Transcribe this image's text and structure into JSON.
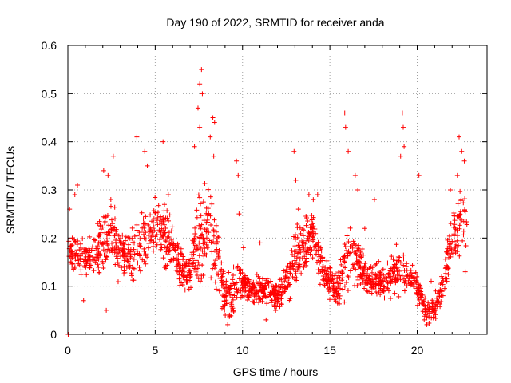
{
  "chart_data": {
    "type": "scatter",
    "title": "Day 190 of 2022, SRMTID for receiver anda",
    "xlabel": "GPS time / hours",
    "ylabel": "SRMTID / TECUs",
    "xlim": [
      0,
      24
    ],
    "ylim": [
      0,
      0.6
    ],
    "x_ticks": [
      0,
      5,
      10,
      15,
      20
    ],
    "x_tick_labels": [
      "0",
      "5",
      "10",
      "15",
      "20"
    ],
    "y_ticks": [
      0,
      0.1,
      0.2,
      0.3,
      0.4,
      0.5,
      0.6
    ],
    "y_tick_labels": [
      "0",
      "0.1",
      "0.2",
      "0.3",
      "0.4",
      "0.5",
      "0.6"
    ],
    "grid": true,
    "marker": "+",
    "color": "#ff0000",
    "envelope": {
      "hours": [
        0.0,
        0.5,
        1.0,
        1.5,
        2.0,
        2.5,
        3.0,
        3.5,
        4.0,
        4.5,
        5.0,
        5.5,
        6.0,
        6.5,
        7.0,
        7.5,
        8.0,
        8.5,
        9.0,
        9.5,
        10.0,
        10.5,
        11.0,
        11.5,
        12.0,
        12.5,
        13.0,
        13.5,
        14.0,
        14.5,
        15.0,
        15.5,
        16.0,
        16.5,
        17.0,
        17.5,
        18.0,
        18.5,
        19.0,
        19.5,
        20.0,
        20.5,
        21.0,
        21.5,
        22.0,
        22.5,
        23.0
      ],
      "median": [
        0.17,
        0.17,
        0.15,
        0.16,
        0.19,
        0.21,
        0.17,
        0.16,
        0.19,
        0.2,
        0.21,
        0.2,
        0.18,
        0.14,
        0.12,
        0.2,
        0.22,
        0.17,
        0.08,
        0.09,
        0.1,
        0.09,
        0.09,
        0.09,
        0.08,
        0.1,
        0.15,
        0.18,
        0.2,
        0.15,
        0.1,
        0.09,
        0.17,
        0.16,
        0.12,
        0.11,
        0.11,
        0.12,
        0.13,
        0.12,
        0.1,
        0.05,
        0.05,
        0.11,
        0.2,
        0.23,
        0.22
      ],
      "spread": [
        0.06,
        0.06,
        0.06,
        0.07,
        0.09,
        0.1,
        0.08,
        0.07,
        0.1,
        0.1,
        0.09,
        0.09,
        0.07,
        0.06,
        0.05,
        0.15,
        0.14,
        0.1,
        0.05,
        0.08,
        0.05,
        0.04,
        0.04,
        0.04,
        0.04,
        0.05,
        0.09,
        0.08,
        0.08,
        0.06,
        0.05,
        0.05,
        0.11,
        0.09,
        0.05,
        0.05,
        0.05,
        0.05,
        0.09,
        0.05,
        0.05,
        0.03,
        0.03,
        0.05,
        0.08,
        0.1,
        0.07
      ],
      "note": "approximate per-half-hour median and spread of the dense scatter; points are sampled within this envelope"
    },
    "points": [
      [
        0.02,
        0.0
      ],
      [
        0.05,
        0.0
      ],
      [
        0.1,
        0.26
      ],
      [
        0.25,
        0.2
      ],
      [
        0.4,
        0.29
      ],
      [
        0.55,
        0.31
      ],
      [
        0.9,
        0.07
      ],
      [
        1.7,
        0.23
      ],
      [
        2.05,
        0.34
      ],
      [
        2.3,
        0.33
      ],
      [
        2.6,
        0.37
      ],
      [
        2.2,
        0.05
      ],
      [
        3.95,
        0.41
      ],
      [
        4.4,
        0.38
      ],
      [
        4.55,
        0.35
      ],
      [
        5.45,
        0.4
      ],
      [
        5.75,
        0.29
      ],
      [
        7.45,
        0.47
      ],
      [
        7.55,
        0.52
      ],
      [
        7.65,
        0.55
      ],
      [
        7.7,
        0.5
      ],
      [
        7.55,
        0.43
      ],
      [
        7.25,
        0.39
      ],
      [
        8.15,
        0.41
      ],
      [
        8.3,
        0.45
      ],
      [
        8.4,
        0.44
      ],
      [
        8.35,
        0.37
      ],
      [
        9.15,
        0.02
      ],
      [
        9.25,
        0.04
      ],
      [
        9.65,
        0.36
      ],
      [
        9.75,
        0.33
      ],
      [
        9.8,
        0.25
      ],
      [
        10.05,
        0.18
      ],
      [
        11.0,
        0.19
      ],
      [
        11.35,
        0.03
      ],
      [
        12.95,
        0.38
      ],
      [
        13.05,
        0.32
      ],
      [
        13.2,
        0.26
      ],
      [
        13.8,
        0.29
      ],
      [
        14.05,
        0.28
      ],
      [
        14.3,
        0.29
      ],
      [
        15.85,
        0.46
      ],
      [
        15.9,
        0.43
      ],
      [
        16.05,
        0.38
      ],
      [
        16.45,
        0.33
      ],
      [
        16.6,
        0.3
      ],
      [
        17.0,
        0.22
      ],
      [
        17.55,
        0.28
      ],
      [
        19.15,
        0.46
      ],
      [
        19.2,
        0.43
      ],
      [
        19.25,
        0.39
      ],
      [
        19.05,
        0.37
      ],
      [
        20.1,
        0.33
      ],
      [
        20.4,
        0.03
      ],
      [
        20.55,
        0.02
      ],
      [
        20.8,
        0.11
      ],
      [
        21.05,
        0.09
      ],
      [
        21.9,
        0.3
      ],
      [
        22.3,
        0.33
      ],
      [
        22.4,
        0.41
      ],
      [
        22.55,
        0.38
      ],
      [
        22.7,
        0.36
      ],
      [
        22.75,
        0.13
      ]
    ]
  }
}
